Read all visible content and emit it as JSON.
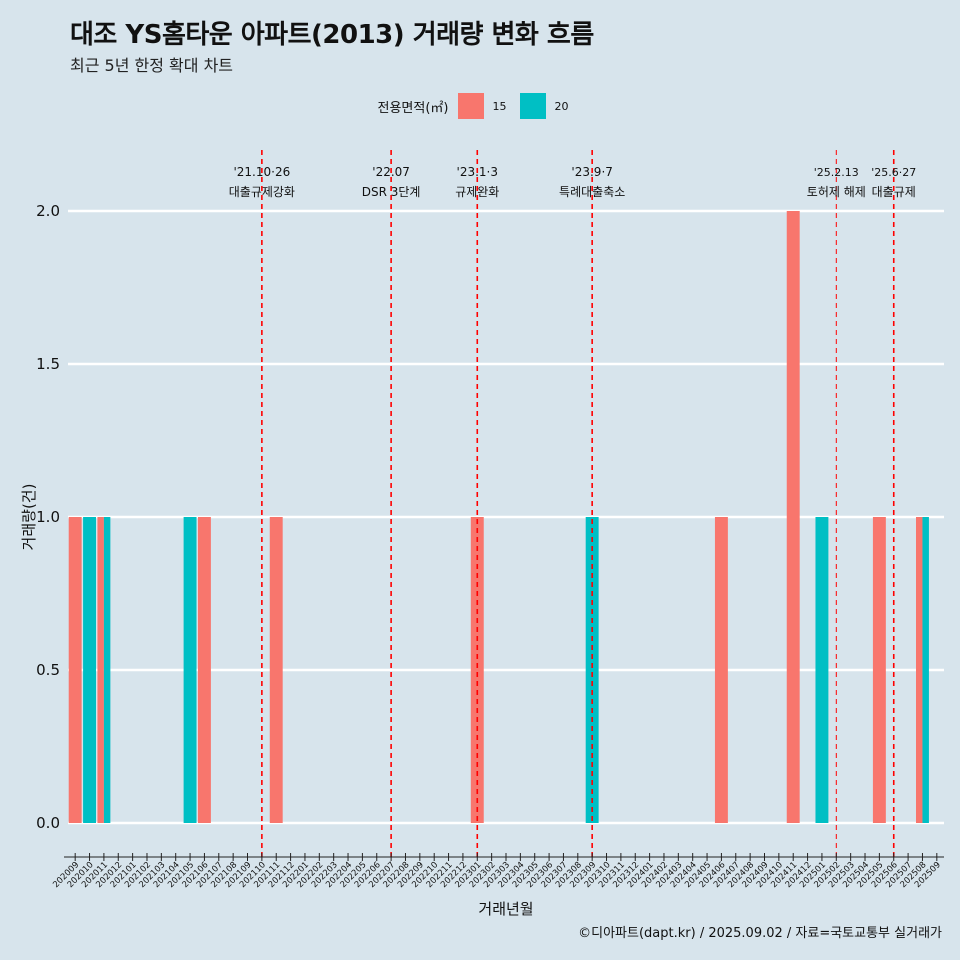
{
  "title": "대조 YS홈타운 아파트(2013) 거래량 변화 흐름",
  "subtitle": "최근 5년 한정 확대 차트",
  "caption": "©디아파트(dapt.kr) / 2025.09.02 / 자료=국토교통부 실거래가",
  "legend": {
    "title": "전용면적(㎡)",
    "items": [
      {
        "label": "15",
        "color": "#f8766d"
      },
      {
        "label": "20",
        "color": "#00bfc4"
      }
    ]
  },
  "chart_data": {
    "type": "bar",
    "title": "대조 YS홈타운 아파트(2013) 거래량 변화 흐름",
    "xlabel": "거래년월",
    "ylabel": "거래량(건)",
    "ylim": [
      0,
      2.0
    ],
    "yticks": [
      "0.0",
      "0.5",
      "1.0",
      "1.5",
      "2.0"
    ],
    "categories": [
      "202009",
      "202010",
      "202011",
      "202012",
      "202101",
      "202102",
      "202103",
      "202104",
      "202105",
      "202106",
      "202107",
      "202108",
      "202109",
      "202110",
      "202111",
      "202112",
      "202201",
      "202202",
      "202203",
      "202204",
      "202205",
      "202206",
      "202207",
      "202208",
      "202209",
      "202210",
      "202211",
      "202212",
      "202301",
      "202302",
      "202303",
      "202304",
      "202305",
      "202306",
      "202307",
      "202308",
      "202309",
      "202310",
      "202311",
      "202312",
      "202401",
      "202402",
      "202403",
      "202404",
      "202405",
      "202406",
      "202407",
      "202408",
      "202409",
      "202410",
      "202411",
      "202412",
      "202501",
      "202502",
      "202503",
      "202504",
      "202505",
      "202506",
      "202507",
      "202508",
      "202509"
    ],
    "series": [
      {
        "name": "15",
        "color": "#f8766d",
        "values": [
          1,
          0,
          1,
          0,
          0,
          0,
          0,
          0,
          0,
          1,
          0,
          0,
          0,
          0,
          1,
          0,
          0,
          0,
          0,
          0,
          0,
          0,
          0,
          0,
          0,
          0,
          0,
          0,
          1,
          0,
          0,
          0,
          0,
          0,
          0,
          0,
          0,
          0,
          0,
          0,
          0,
          0,
          0,
          0,
          0,
          1,
          0,
          0,
          0,
          0,
          2,
          0,
          0,
          0,
          0,
          0,
          1,
          0,
          0,
          1,
          0
        ]
      },
      {
        "name": "20",
        "color": "#00bfc4",
        "values": [
          0,
          1,
          1,
          0,
          0,
          0,
          0,
          0,
          1,
          0,
          0,
          0,
          0,
          0,
          0,
          0,
          0,
          0,
          0,
          0,
          0,
          0,
          0,
          0,
          0,
          0,
          0,
          0,
          0,
          0,
          0,
          0,
          0,
          0,
          0,
          0,
          1,
          0,
          0,
          0,
          0,
          0,
          0,
          0,
          0,
          0,
          0,
          0,
          0,
          0,
          0,
          0,
          1,
          0,
          0,
          0,
          0,
          0,
          0,
          1,
          0
        ]
      }
    ],
    "bar_groups": [
      {
        "category": "202009",
        "segments": [
          {
            "series": "15",
            "value": 1
          }
        ]
      },
      {
        "category": "202010",
        "segments": [
          {
            "series": "20",
            "value": 1
          }
        ]
      },
      {
        "category": "202011",
        "segments": [
          {
            "series": "15",
            "value": 1
          },
          {
            "series": "20",
            "value": 1
          }
        ]
      },
      {
        "category": "202105",
        "segments": [
          {
            "series": "20",
            "value": 1
          }
        ]
      },
      {
        "category": "202106",
        "segments": [
          {
            "series": "15",
            "value": 1
          }
        ]
      },
      {
        "category": "202111",
        "segments": [
          {
            "series": "15",
            "value": 1
          }
        ]
      },
      {
        "category": "202301",
        "segments": [
          {
            "series": "15",
            "value": 1
          }
        ]
      },
      {
        "category": "202309",
        "segments": [
          {
            "series": "20",
            "value": 1
          }
        ]
      },
      {
        "category": "202406",
        "segments": [
          {
            "series": "15",
            "value": 1
          }
        ]
      },
      {
        "category": "202411",
        "segments": [
          {
            "series": "15",
            "value": 2
          }
        ]
      },
      {
        "category": "202501",
        "segments": [
          {
            "series": "20",
            "value": 1
          }
        ]
      },
      {
        "category": "202505",
        "segments": [
          {
            "series": "15",
            "value": 1
          }
        ]
      },
      {
        "category": "202508",
        "segments": [
          {
            "series": "15",
            "value": 1
          },
          {
            "series": "20",
            "value": 1
          }
        ]
      }
    ],
    "annotations": [
      {
        "date": "'21.10·26",
        "label": "대출규제강화",
        "pos": 13.5
      },
      {
        "date": "'22.07",
        "label": "DSR 3단계",
        "pos": 22.5
      },
      {
        "date": "'23.1·3",
        "label": "규제완화",
        "pos": 28.5
      },
      {
        "date": "'23.9·7",
        "label": "특례대출축소",
        "pos": 36.5
      },
      {
        "date": "'25.2.13",
        "label": "토허제 해제",
        "pos": 53.5
      },
      {
        "date": "'25.6·27",
        "label": "대출규제",
        "pos": 57.5
      }
    ],
    "reference_line_color": "#ff0000"
  }
}
